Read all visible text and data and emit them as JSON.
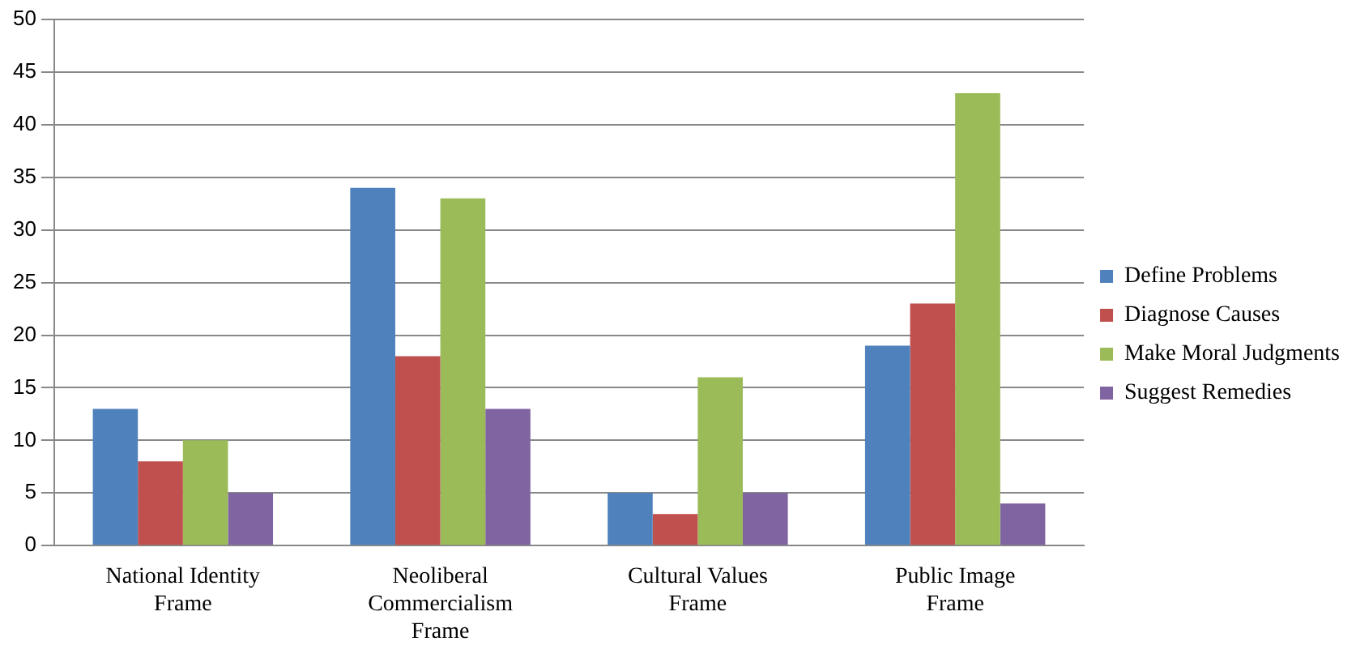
{
  "chart_data": {
    "type": "bar",
    "categories": [
      "National Identity Frame",
      "Neoliberal Commercialism Frame",
      "Cultural Values Frame",
      "Public Image Frame"
    ],
    "series": [
      {
        "name": "Define Problems",
        "color": "#4f81bd",
        "values": [
          13,
          34,
          5,
          19
        ]
      },
      {
        "name": "Diagnose Causes",
        "color": "#c0504d",
        "values": [
          8,
          18,
          3,
          23
        ]
      },
      {
        "name": "Make Moral Judgments",
        "color": "#9bbb59",
        "values": [
          10,
          33,
          16,
          43
        ]
      },
      {
        "name": "Suggest Remedies",
        "color": "#8064a2",
        "values": [
          5,
          13,
          5,
          4
        ]
      }
    ],
    "ylim": [
      0,
      50
    ],
    "yticks": [
      0,
      5,
      10,
      15,
      20,
      25,
      30,
      35,
      40,
      45,
      50
    ],
    "grid": "y",
    "legend": "right"
  }
}
